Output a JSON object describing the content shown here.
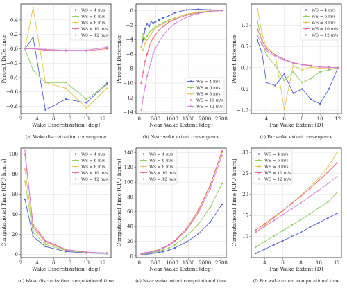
{
  "chart_data": [
    {
      "id": "a",
      "type": "line",
      "caption": "(a) Wake discretization convergence",
      "xlabel": "Wake Discretization [deg]",
      "ylabel": "Percent Difference",
      "xlim": [
        2,
        13
      ],
      "ylim": [
        -0.9,
        0.62
      ],
      "xticks": [
        2,
        4,
        6,
        8,
        10,
        12
      ],
      "yticks": [
        -0.8,
        -0.6,
        -0.4,
        -0.2,
        0.0,
        0.2,
        0.4
      ],
      "ytick_labels": [
        "−0.8",
        "−0.6",
        "−0.4",
        "−0.2",
        "0.0",
        "0.2",
        "0.4"
      ],
      "grid": true,
      "legend": "top-right",
      "x": [
        2.5,
        3.5,
        5,
        7.5,
        10,
        12.5
      ],
      "series": [
        {
          "name": "WS = 4 m/s",
          "values": [
            0,
            0.16,
            -0.85,
            -0.7,
            -0.75,
            -0.48
          ]
        },
        {
          "name": "WS = 6 m/s",
          "values": [
            0,
            -0.3,
            -0.47,
            -0.47,
            -0.7,
            -0.5
          ]
        },
        {
          "name": "WS = 8 m/s",
          "values": [
            0,
            0.57,
            -0.47,
            -0.55,
            -0.82,
            -0.55
          ]
        },
        {
          "name": "WS = 10 m/s",
          "values": [
            0,
            0,
            -0.02,
            -0.03,
            -0.03,
            0
          ]
        },
        {
          "name": "WS = 12 m/s",
          "values": [
            0,
            0,
            -0.01,
            -0.02,
            -0.02,
            0.02
          ]
        }
      ]
    },
    {
      "id": "b",
      "type": "line",
      "caption": "(b) Near wake extent convergence",
      "xlabel": "Near Wake Extent [deg]",
      "ylabel": "Percent Difference",
      "xlim": [
        -100,
        2650
      ],
      "ylim": [
        -14.2,
        0.9
      ],
      "xticks": [
        0,
        500,
        1000,
        1500,
        2000,
        2500
      ],
      "yticks": [
        -14,
        -12,
        -10,
        -8,
        -6,
        -4,
        -2,
        0
      ],
      "ytick_labels": [
        "−14",
        "−12",
        "−10",
        "−8",
        "−6",
        "−4",
        "−2",
        "0"
      ],
      "grid": true,
      "legend": "bottom-right",
      "x": [
        60,
        120,
        180,
        240,
        300,
        360,
        420,
        480,
        600,
        720,
        900,
        1080,
        1440,
        1800,
        2160,
        2520
      ],
      "series": [
        {
          "name": "WS = 4 m/s",
          "values": [
            -5,
            -4,
            -2.5,
            -1.8,
            -2.2,
            -1.5,
            -1.7,
            -1.6,
            -1.3,
            -1.0,
            -0.7,
            -0.3,
            0.1,
            0.2,
            0.1,
            0
          ]
        },
        {
          "name": "WS = 6 m/s",
          "values": [
            -5,
            -3.2,
            -4,
            -3.5,
            -3,
            -2.7,
            -2.5,
            -2.3,
            -2,
            -1.7,
            -1.3,
            -1.0,
            -0.5,
            -0.2,
            -0.05,
            0
          ]
        },
        {
          "name": "WS = 8 m/s",
          "values": [
            -5,
            -5.5,
            -4.5,
            -4,
            -3.6,
            -3.2,
            -2.8,
            -2.5,
            -2.1,
            -1.8,
            -1.4,
            -1.0,
            -0.5,
            -0.2,
            -0.05,
            0
          ]
        },
        {
          "name": "WS = 10 m/s",
          "values": [
            -10,
            -8.5,
            -7,
            -6,
            -5,
            -4.3,
            -3.8,
            -3.4,
            -2.7,
            -2.2,
            -1.6,
            -1.2,
            -0.6,
            -0.3,
            -0.1,
            0
          ]
        },
        {
          "name": "WS = 12 m/s",
          "values": [
            -13.8,
            -12,
            -10.5,
            -9,
            -8,
            -7,
            -6,
            -5.3,
            -4.3,
            -3.4,
            -2.5,
            -1.8,
            -0.9,
            -0.4,
            -0.1,
            0
          ]
        }
      ]
    },
    {
      "id": "c",
      "type": "line",
      "caption": "(c) Far wake extent convergence",
      "xlabel": "Far Wake Extent [D]",
      "ylabel": "Percent Difference",
      "xlim": [
        2.3,
        12.4
      ],
      "ylim": [
        -1.08,
        1.5
      ],
      "xticks": [
        4,
        6,
        8,
        10,
        12
      ],
      "yticks": [
        -1.0,
        -0.5,
        0.0,
        0.5,
        1.0
      ],
      "ytick_labels": [
        "−1.0",
        "−0.5",
        "0.0",
        "0.5",
        "1.0"
      ],
      "grid": true,
      "legend": "top-right",
      "x": [
        3,
        3.5,
        4,
        5,
        6,
        7,
        8,
        9,
        10,
        11,
        12
      ],
      "series": [
        {
          "name": "WS = 4 m/s",
          "values": [
            0.65,
            0.35,
            -0.35,
            -0.42,
            -0.15,
            -0.6,
            -0.5,
            -0.75,
            -0.85,
            -0.5,
            0
          ]
        },
        {
          "name": "WS = 6 m/s",
          "values": [
            1.1,
            0.6,
            0.3,
            0.05,
            -0.3,
            -0.1,
            -0.35,
            -0.25,
            -0.1,
            -0.05,
            0
          ]
        },
        {
          "name": "WS = 8 m/s",
          "values": [
            1.4,
            0.8,
            0.5,
            0.3,
            -0.98,
            0.05,
            -0.05,
            0.02,
            -0.02,
            0,
            0
          ]
        },
        {
          "name": "WS = 10 m/s",
          "values": [
            0.9,
            0.65,
            0.45,
            0.3,
            0.2,
            0.12,
            0.08,
            0.05,
            0.02,
            0.01,
            0
          ]
        },
        {
          "name": "WS = 12 m/s",
          "values": [
            0.75,
            0.55,
            0.4,
            0.27,
            0.18,
            0.11,
            0.07,
            0.04,
            0.02,
            0.01,
            0
          ]
        }
      ]
    },
    {
      "id": "d",
      "type": "line",
      "caption": "(d) Wake discretization computational time",
      "xlabel": "Wake Discretization [deg]",
      "ylabel": "Computational Time [CPU hours]",
      "xlim": [
        2,
        13
      ],
      "ylim": [
        -3,
        106
      ],
      "xticks": [
        2,
        4,
        6,
        8,
        10,
        12
      ],
      "yticks": [
        0,
        20,
        40,
        60,
        80,
        100
      ],
      "ytick_labels": [
        "0",
        "20",
        "40",
        "60",
        "80",
        "100"
      ],
      "grid": true,
      "legend": "top-right",
      "x": [
        2.5,
        3.5,
        5,
        7.5,
        10,
        12.5
      ],
      "series": [
        {
          "name": "WS = 4 m/s",
          "values": [
            55,
            18,
            8,
            3,
            1.5,
            1
          ]
        },
        {
          "name": "WS = 6 m/s",
          "values": [
            73,
            22,
            10,
            4,
            2,
            1.2
          ]
        },
        {
          "name": "WS = 8 m/s",
          "values": [
            85,
            26,
            12,
            4.5,
            2.2,
            1.3
          ]
        },
        {
          "name": "WS = 10 m/s",
          "values": [
            100,
            30,
            14,
            5,
            2.5,
            1.5
          ]
        },
        {
          "name": "WS = 12 m/s",
          "values": [
            104,
            28,
            13,
            4.8,
            2.4,
            1.4
          ]
        }
      ]
    },
    {
      "id": "e",
      "type": "line",
      "caption": "(e) Near wake extent computational time",
      "xlabel": "Near Wake Extent [deg]",
      "ylabel": "Computational Time [CPU hours]",
      "xlim": [
        -100,
        2650
      ],
      "ylim": [
        -2,
        146
      ],
      "xticks": [
        0,
        500,
        1000,
        1500,
        2000,
        2500
      ],
      "yticks": [
        0,
        20,
        40,
        60,
        80,
        100,
        120,
        140
      ],
      "ytick_labels": [
        "0",
        "20",
        "40",
        "60",
        "80",
        "100",
        "120",
        "140"
      ],
      "grid": true,
      "legend": "top-left",
      "x": [
        60,
        120,
        180,
        240,
        300,
        360,
        420,
        480,
        600,
        720,
        900,
        1080,
        1440,
        1800,
        2160,
        2520
      ],
      "series": [
        {
          "name": "WS = 4 m/s",
          "values": [
            2,
            2.3,
            2.6,
            2.8,
            3.1,
            3.5,
            3.8,
            4.2,
            5,
            6,
            8,
            11,
            19,
            30,
            46,
            70
          ]
        },
        {
          "name": "WS = 6 m/s",
          "values": [
            2.5,
            2.9,
            3.2,
            3.6,
            4,
            4.5,
            5,
            5.5,
            6.5,
            8,
            11,
            15,
            27,
            43,
            66,
            98
          ]
        },
        {
          "name": "WS = 8 m/s",
          "values": [
            3,
            3.5,
            4,
            4.5,
            5,
            5.7,
            6.3,
            7,
            8.5,
            10.5,
            14.5,
            20,
            36,
            60,
            95,
            140
          ]
        },
        {
          "name": "WS = 10 m/s",
          "values": [
            3.2,
            3.7,
            4.2,
            4.7,
            5.2,
            5.9,
            6.5,
            7.3,
            8.8,
            11,
            15,
            21,
            37,
            62,
            96,
            142
          ]
        },
        {
          "name": "WS = 12 m/s",
          "values": [
            3,
            3.4,
            3.9,
            4.4,
            4.9,
            5.5,
            6.1,
            6.8,
            8.2,
            10.2,
            14,
            19.5,
            35,
            58,
            91,
            136
          ]
        }
      ]
    },
    {
      "id": "f",
      "type": "line",
      "caption": "(f) Far wake extent computational time",
      "xlabel": "Far Wake Extent [D]",
      "ylabel": "Computational Time [CPU hours]",
      "xlim": [
        2.5,
        12.5
      ],
      "ylim": [
        5,
        31
      ],
      "xticks": [
        4,
        6,
        8,
        10,
        12
      ],
      "yticks": [
        10,
        15,
        20,
        25,
        30
      ],
      "ytick_labels": [
        "10",
        "15",
        "20",
        "25",
        "30"
      ],
      "grid": true,
      "legend": "top-left",
      "x": [
        3,
        4,
        5,
        6,
        7,
        8,
        9,
        10,
        11,
        12
      ],
      "series": [
        {
          "name": "WS = 4 m/s",
          "values": [
            6,
            7,
            8,
            9,
            10,
            11,
            12.2,
            13.3,
            14.4,
            15.5
          ]
        },
        {
          "name": "WS = 6 m/s",
          "values": [
            7.5,
            8.8,
            10.1,
            11.4,
            12.7,
            14,
            15.4,
            16.8,
            18.2,
            20.5
          ]
        },
        {
          "name": "WS = 8 m/s",
          "values": [
            11,
            12.7,
            14.4,
            16.1,
            17.9,
            19.8,
            21.8,
            23.9,
            26.5,
            30
          ]
        },
        {
          "name": "WS = 10 m/s",
          "values": [
            11.5,
            13,
            14.6,
            16.2,
            17.9,
            19.6,
            21.4,
            23.3,
            25.3,
            27.5
          ]
        },
        {
          "name": "WS = 12 m/s",
          "values": [
            11,
            12.4,
            13.8,
            15.2,
            16.6,
            18,
            19.5,
            21,
            22.6,
            24.2
          ]
        }
      ]
    }
  ],
  "colors": [
    "#4c5ec4",
    "#8ccb5e",
    "#e3c44c",
    "#e9657f",
    "#cf7fd8"
  ]
}
